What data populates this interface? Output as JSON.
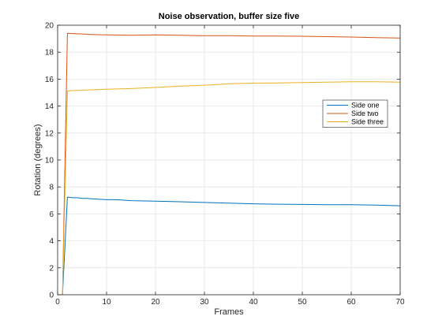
{
  "chart_data": {
    "type": "line",
    "title": "Noise observation, buffer size five",
    "xlabel": "Frames",
    "ylabel": "Rotation (degrees)",
    "xlim": [
      0,
      70
    ],
    "ylim": [
      0,
      20
    ],
    "xticks": [
      0,
      10,
      20,
      30,
      40,
      50,
      60,
      70
    ],
    "yticks": [
      0,
      2,
      4,
      6,
      8,
      10,
      12,
      14,
      16,
      18,
      20
    ],
    "grid": true,
    "legend_position": "right",
    "series": [
      {
        "name": "Side one",
        "color": "#0072BD",
        "x": [
          1,
          2,
          3,
          4,
          5,
          6,
          7,
          8,
          10,
          12,
          15,
          20,
          25,
          30,
          35,
          40,
          45,
          50,
          55,
          60,
          65,
          70
        ],
        "y": [
          0,
          7.25,
          7.2,
          7.2,
          7.15,
          7.15,
          7.12,
          7.1,
          7.05,
          7.05,
          6.98,
          6.95,
          6.9,
          6.85,
          6.8,
          6.75,
          6.72,
          6.7,
          6.68,
          6.68,
          6.65,
          6.6
        ]
      },
      {
        "name": "Side two",
        "color": "#D95319",
        "x": [
          1,
          2,
          3,
          4,
          5,
          6,
          8,
          10,
          15,
          20,
          25,
          30,
          35,
          40,
          45,
          50,
          55,
          60,
          65,
          70
        ],
        "y": [
          0,
          19.4,
          19.38,
          19.36,
          19.35,
          19.33,
          19.3,
          19.28,
          19.25,
          19.28,
          19.25,
          19.22,
          19.22,
          19.2,
          19.2,
          19.18,
          19.15,
          19.12,
          19.08,
          19.05
        ]
      },
      {
        "name": "Side three",
        "color": "#EDB120",
        "x": [
          1,
          2,
          3,
          4,
          5,
          6,
          8,
          10,
          15,
          20,
          25,
          30,
          35,
          40,
          45,
          50,
          55,
          60,
          65,
          70
        ],
        "y": [
          0,
          15.1,
          15.15,
          15.15,
          15.18,
          15.2,
          15.22,
          15.25,
          15.3,
          15.38,
          15.48,
          15.55,
          15.65,
          15.7,
          15.72,
          15.75,
          15.77,
          15.8,
          15.8,
          15.78
        ]
      }
    ]
  }
}
